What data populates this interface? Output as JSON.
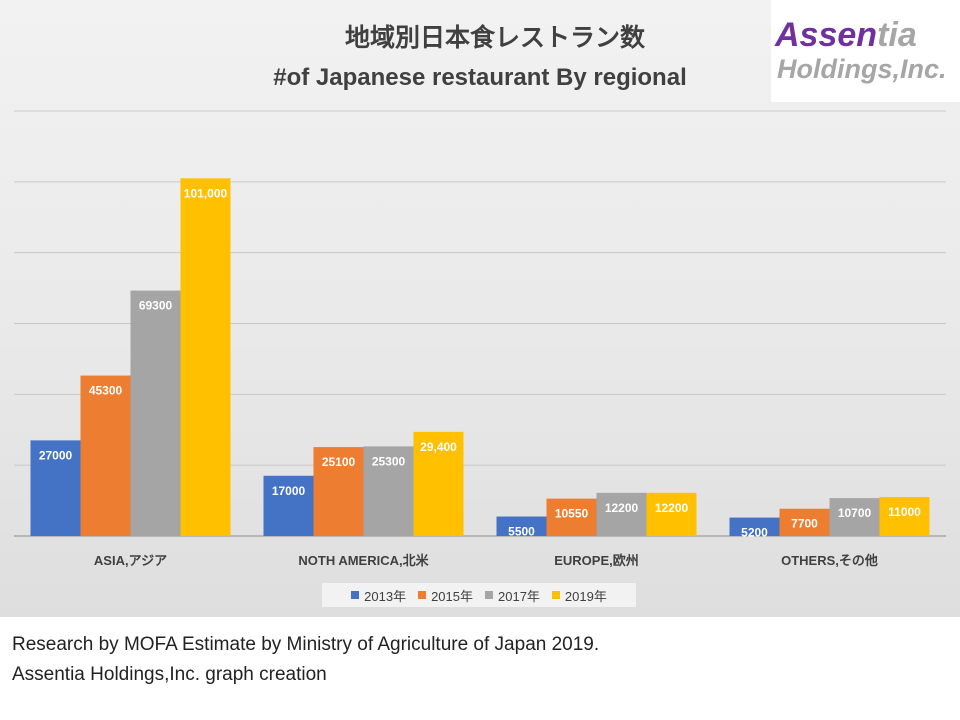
{
  "title": "地域別日本食レストラン数",
  "subtitle": "#of Japanese restaurant By regional",
  "logo": {
    "line1_a": "Assen",
    "line1_b": "tia",
    "line2": "Holdings,Inc."
  },
  "colors": {
    "2013年": "#4472c4",
    "2015年": "#ed7d31",
    "2017年": "#a5a5a5",
    "2019年": "#ffc000"
  },
  "chart_data": {
    "type": "bar",
    "title": "地域別日本食レストラン数",
    "subtitle": "#of Japanese restaurant By regional",
    "categories": [
      "ASIA,アジア",
      "NOTH AMERICA,北米",
      "EUROPE,欧州",
      "OTHERS,その他"
    ],
    "series": [
      {
        "name": "2013年",
        "values": [
          27000,
          17000,
          5500,
          5200
        ],
        "labels": [
          "27000",
          "17000",
          "5500",
          "5200"
        ]
      },
      {
        "name": "2015年",
        "values": [
          45300,
          25100,
          10550,
          7700
        ],
        "labels": [
          "45300",
          "25100",
          "10550",
          "7700"
        ]
      },
      {
        "name": "2017年",
        "values": [
          69300,
          25300,
          12200,
          10700
        ],
        "labels": [
          "69300",
          "25300",
          "12200",
          "10700"
        ]
      },
      {
        "name": "2019年",
        "values": [
          101000,
          29400,
          12200,
          11000
        ],
        "labels": [
          "101,000",
          "29,400",
          "12200",
          "11000"
        ]
      }
    ],
    "ylim": [
      0,
      120000
    ],
    "grid": true,
    "legend": "bottom"
  },
  "footer": {
    "line1": "Research by MOFA Estimate by Ministry of Agriculture of Japan 2019.",
    "line2": "Assentia Holdings,Inc. graph creation"
  }
}
